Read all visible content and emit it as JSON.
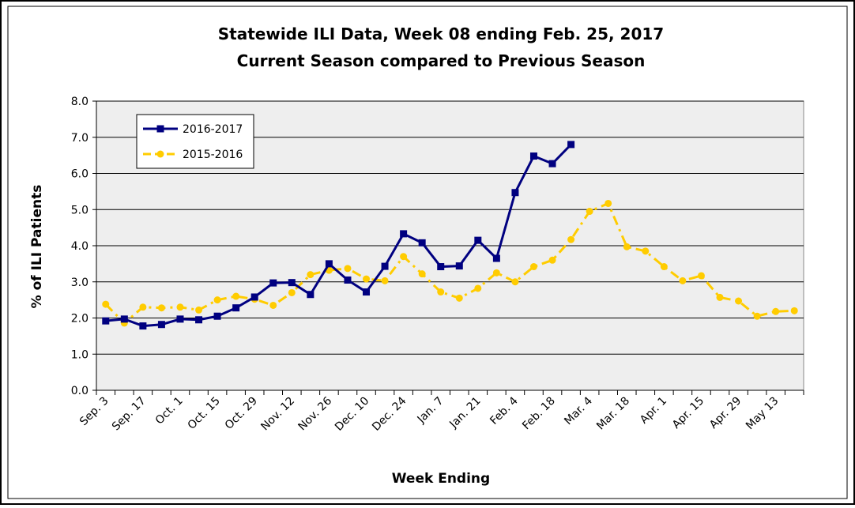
{
  "chart_data": {
    "type": "line",
    "title": "Statewide ILI Data, Week 08 ending Feb. 25, 2017",
    "subtitle": "Current Season compared to Previous Season",
    "x_label": "Week Ending",
    "y_label": "% of ILI Patients",
    "categories": [
      "Sep. 3",
      null,
      "Sep. 17",
      null,
      "Oct. 1",
      null,
      "Oct. 15",
      null,
      "Oct. 29",
      null,
      "Nov. 12",
      null,
      "Nov. 26",
      null,
      "Dec. 10",
      null,
      "Dec. 24",
      null,
      "Jan. 7",
      null,
      "Jan. 21",
      null,
      "Feb. 4",
      null,
      "Feb. 18",
      null,
      "Mar. 4",
      null,
      "Mar. 18",
      null,
      "Apr. 1",
      null,
      "Apr. 15",
      null,
      "Apr. 29",
      null,
      "May 13",
      null
    ],
    "series": [
      {
        "name": "2016-2017",
        "color": "#000080",
        "marker": "square",
        "dashed": false,
        "values": [
          1.92,
          1.97,
          1.78,
          1.82,
          1.97,
          1.95,
          2.05,
          2.28,
          2.58,
          2.97,
          2.98,
          2.65,
          3.5,
          3.05,
          2.72,
          3.43,
          4.33,
          4.08,
          3.42,
          3.44,
          4.15,
          3.65,
          5.47,
          6.48,
          6.27,
          6.8,
          null,
          null,
          null,
          null,
          null,
          null,
          null,
          null,
          null,
          null,
          null,
          null
        ]
      },
      {
        "name": "2015-2016",
        "color": "#ffcc00",
        "marker": "circle",
        "dashed": true,
        "values": [
          2.38,
          1.86,
          2.3,
          2.28,
          2.3,
          2.22,
          2.5,
          2.6,
          2.52,
          2.35,
          2.7,
          3.2,
          3.32,
          3.37,
          3.08,
          3.03,
          3.7,
          3.22,
          2.72,
          2.55,
          2.82,
          3.25,
          3.0,
          3.42,
          3.6,
          4.17,
          4.95,
          5.17,
          3.97,
          3.85,
          3.42,
          3.03,
          3.17,
          2.57,
          2.47,
          2.05,
          2.18,
          2.2
        ]
      }
    ],
    "ylim": [
      0,
      8
    ],
    "yticks": [
      {
        "value": 0,
        "label": "0.0"
      },
      {
        "value": 1,
        "label": "1.0"
      },
      {
        "value": 2,
        "label": "2.0"
      },
      {
        "value": 3,
        "label": "3.0"
      },
      {
        "value": 4,
        "label": "4.0"
      },
      {
        "value": 5,
        "label": "5.0"
      },
      {
        "value": 6,
        "label": "6.0"
      },
      {
        "value": 7,
        "label": "7.0"
      },
      {
        "value": 8,
        "label": "8.0"
      }
    ],
    "grid": true,
    "legend": "upper-left"
  }
}
